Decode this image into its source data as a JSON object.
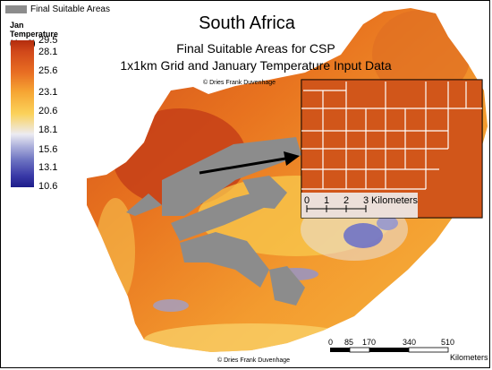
{
  "legend": {
    "suitable_label": "Final Suitable Areas",
    "suitable_color": "#8c8c8c",
    "temp_title": "Jan Temperature (degC)",
    "temp_values": [
      "29.5",
      "28.1",
      "25.6",
      "23.1",
      "20.6",
      "18.1",
      "15.6",
      "13.1",
      "10.6"
    ]
  },
  "title": {
    "main": "South Africa",
    "line1": "Final Suitable Areas for CSP",
    "line2": "1x1km Grid and January Temperature Input Data"
  },
  "credit_top": "© Dries Frank Duvenhage",
  "credit_bottom": "© Dries Frank Duvenhage",
  "inset": {
    "scale_ticks": [
      "0",
      "1",
      "2",
      "3"
    ],
    "scale_unit": "Kilometers",
    "fill_color": "#d65a1c",
    "grid_color": "#ffffff"
  },
  "scale_bar": {
    "ticks": [
      "0",
      "85",
      "170",
      "340",
      "510"
    ],
    "unit": "Kilometers"
  },
  "colors": {
    "hot": "#c9421a",
    "warm": "#ef8a2a",
    "mild": "#f7b640",
    "cool": "#f9d66e",
    "cold": "#8f94d2"
  }
}
